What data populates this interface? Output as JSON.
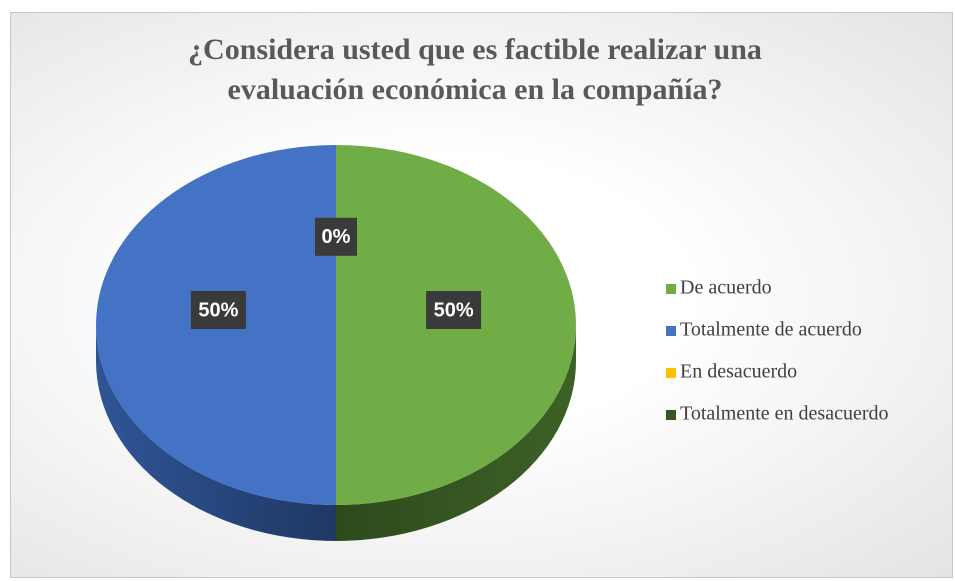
{
  "chart_data": {
    "type": "pie",
    "title": "¿Considera usted que es  factible realizar una evaluación económica en la compañía?",
    "categories": [
      "De acuerdo",
      "Totalmente de acuerdo",
      "En desacuerdo",
      "Totalmente en desacuerdo"
    ],
    "values": [
      50,
      50,
      0,
      0
    ],
    "value_labels": [
      "50%",
      "50%",
      "0%",
      null
    ],
    "colors": [
      "#70ad47",
      "#4472c4",
      "#ffc000",
      "#375623"
    ],
    "legend": "right"
  }
}
